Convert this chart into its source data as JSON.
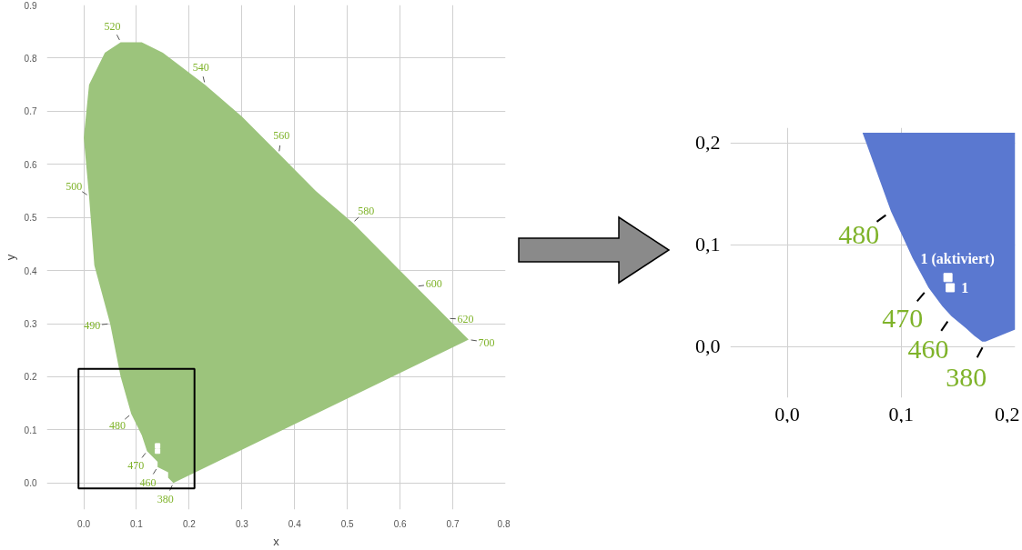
{
  "chart_data": [
    {
      "type": "area",
      "xlabel": "x",
      "ylabel": "y",
      "xlim": [
        -0.07,
        0.8
      ],
      "ylim": [
        -0.05,
        0.9
      ],
      "xticks": [
        {
          "value": 0,
          "label": "0.0"
        },
        0.1,
        0.2,
        0.3,
        0.4,
        0.5,
        0.6,
        0.7,
        0.8
      ],
      "yticks": [
        {
          "value": 0,
          "label": "0.0"
        },
        0.1,
        0.2,
        0.3,
        0.4,
        0.5,
        0.6,
        0.7,
        0.8,
        0.9
      ],
      "grid": true,
      "series": [
        {
          "color": "#9cc47c",
          "x": [
            0.17,
            0.17,
            0.16,
            0.16,
            0.14,
            0.14,
            0.12,
            0.11,
            0.09,
            0.07,
            0.05,
            0.02,
            0.01,
            0.0,
            0.01,
            0.04,
            0.07,
            0.11,
            0.15,
            0.23,
            0.3,
            0.37,
            0.44,
            0.51,
            0.58,
            0.63,
            0.67,
            0.69,
            0.72,
            0.73
          ],
          "values": [
            0.0,
            0.0,
            0.01,
            0.02,
            0.03,
            0.04,
            0.06,
            0.09,
            0.13,
            0.2,
            0.3,
            0.41,
            0.54,
            0.65,
            0.75,
            0.81,
            0.83,
            0.83,
            0.81,
            0.75,
            0.69,
            0.62,
            0.55,
            0.49,
            0.42,
            0.37,
            0.33,
            0.31,
            0.28,
            0.27
          ]
        },
        {
          "type": "scatter",
          "marker": "square",
          "color": "#ffffff",
          "x": [
            0.14,
            0.14
          ],
          "values": [
            0.07,
            0.06
          ]
        }
      ],
      "annotations": [
        {
          "text": "380",
          "x": 0.17,
          "y": 0.0
        },
        {
          "text": "460",
          "x": 0.14,
          "y": 0.03
        },
        {
          "text": "470",
          "x": 0.12,
          "y": 0.06
        },
        {
          "text": "480",
          "x": 0.09,
          "y": 0.13
        },
        {
          "text": "490",
          "x": 0.05,
          "y": 0.3
        },
        {
          "text": "500",
          "x": 0.01,
          "y": 0.54
        },
        {
          "text": "520",
          "x": 0.07,
          "y": 0.83
        },
        {
          "text": "540",
          "x": 0.23,
          "y": 0.75
        },
        {
          "text": "560",
          "x": 0.37,
          "y": 0.62
        },
        {
          "text": "580",
          "x": 0.51,
          "y": 0.49
        },
        {
          "text": "600",
          "x": 0.63,
          "y": 0.37
        },
        {
          "text": "620",
          "x": 0.69,
          "y": 0.31
        },
        {
          "text": "700",
          "x": 0.73,
          "y": 0.27
        }
      ]
    },
    {
      "type": "area",
      "xlim": [
        -0.05,
        0.2
      ],
      "ylim": [
        -0.05,
        0.215
      ],
      "xticks": [
        {
          "value": 0,
          "label": "0,0"
        },
        {
          "value": 0.1,
          "label": "0,1"
        },
        {
          "value": 0.2,
          "label": "0,2"
        }
      ],
      "yticks": [
        {
          "value": 0,
          "label": "0,0"
        },
        {
          "value": 0.1,
          "label": "0,1"
        },
        {
          "value": 0.2,
          "label": "0,2"
        }
      ],
      "grid": true,
      "series": [
        {
          "color": "#5a78d0",
          "x": [
            0.2,
            0.174,
            0.171,
            0.164,
            0.157,
            0.144,
            0.136,
            0.124,
            0.11,
            0.091,
            0.069,
            0.066,
            0.2
          ],
          "values": [
            0.017,
            0.005,
            0.005,
            0.011,
            0.018,
            0.03,
            0.04,
            0.058,
            0.087,
            0.133,
            0.201,
            0.21,
            0.21
          ]
        },
        {
          "type": "scatter",
          "marker": "square",
          "color": "#ffffff",
          "x": [
            0.141,
            0.143
          ],
          "values": [
            0.068,
            0.058
          ]
        }
      ],
      "annotations": [
        {
          "text": "380",
          "x": 0.174,
          "y": 0.005
        },
        {
          "text": "460",
          "x": 0.144,
          "y": 0.03
        },
        {
          "text": "470",
          "x": 0.124,
          "y": 0.058
        },
        {
          "text": "480",
          "x": 0.091,
          "y": 0.133
        },
        {
          "text": "1 (aktiviert)",
          "x": 0.141,
          "y": 0.068
        },
        {
          "text": "1",
          "x": 0.143,
          "y": 0.058
        }
      ]
    }
  ]
}
